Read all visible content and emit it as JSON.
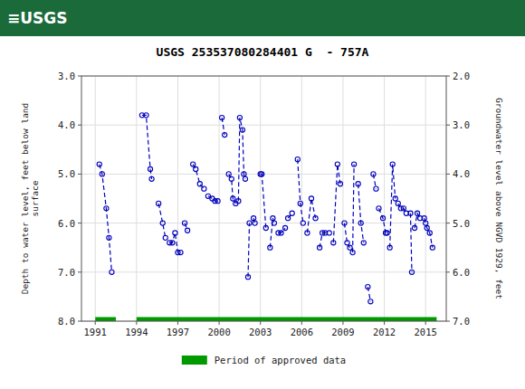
{
  "chart_data": {
    "type": "line",
    "header": {
      "text": "≡USGS",
      "color": "#1b6b3a"
    },
    "title": "USGS 253537080284401 G  - 757A",
    "ylabel": "Depth to water level, feet below land\nsurface",
    "y2label": "Groundwater level above NGVD 1929, feet",
    "xlim": [
      1990,
      2016.5
    ],
    "xticks": [
      1991,
      1994,
      1997,
      2000,
      2003,
      2006,
      2009,
      2012,
      2015
    ],
    "ylim": [
      8.0,
      3.0
    ],
    "yticks": [
      {
        "value": 3.0,
        "label": "3.0"
      },
      {
        "value": 4.0,
        "label": "4.0"
      },
      {
        "value": 5.0,
        "label": "5.0"
      },
      {
        "value": 6.0,
        "label": "6.0"
      },
      {
        "value": 7.0,
        "label": "7.0"
      },
      {
        "value": 8.0,
        "label": "8.0"
      }
    ],
    "y2lim": [
      7.0,
      2.0
    ],
    "y2ticks": [
      {
        "value": 2.0,
        "label": "2.0"
      },
      {
        "value": 3.0,
        "label": "3.0"
      },
      {
        "value": 4.0,
        "label": "4.0"
      },
      {
        "value": 5.0,
        "label": "5.0"
      },
      {
        "value": 6.0,
        "label": "6.0"
      },
      {
        "value": 7.0,
        "label": "7.0"
      }
    ],
    "grid": true,
    "legend": "bottom",
    "color": "#0000bb",
    "marker": "circle",
    "line_style": "dashed",
    "series": [
      {
        "x": [
          1991.3,
          1991.5,
          1991.8,
          1992.0,
          1992.2
        ],
        "values": [
          4.8,
          5.0,
          5.7,
          6.3,
          7.0
        ]
      },
      {
        "x": [
          1994.4,
          1994.7,
          1995.0,
          1995.1
        ],
        "values": [
          3.8,
          3.8,
          4.9,
          5.1
        ]
      },
      {
        "x": [
          1995.6,
          1995.9,
          1996.1
        ],
        "values": [
          5.6,
          6.0,
          6.3
        ]
      },
      {
        "x": [
          1996.4,
          1996.6,
          1996.8,
          1997.0,
          1997.2
        ],
        "values": [
          6.4,
          6.4,
          6.2,
          6.6,
          6.6
        ]
      },
      {
        "x": [
          1997.5,
          1997.7
        ],
        "values": [
          6.0,
          6.15
        ]
      },
      {
        "x": [
          1998.1,
          1998.3,
          1998.6,
          1998.9
        ],
        "values": [
          4.8,
          4.9,
          5.2,
          5.3
        ]
      },
      {
        "x": [
          1999.2,
          1999.5,
          1999.7,
          1999.9
        ],
        "values": [
          5.45,
          5.5,
          5.55,
          5.55
        ]
      },
      {
        "x": [
          2000.2,
          2000.4
        ],
        "values": [
          3.85,
          4.2
        ]
      },
      {
        "x": [
          2000.7,
          2000.9,
          2001.0,
          2001.2
        ],
        "values": [
          5.0,
          5.1,
          5.5,
          5.6
        ]
      },
      {
        "x": [
          2001.4,
          2001.5,
          2001.7,
          2001.8,
          2001.9
        ],
        "values": [
          5.55,
          3.85,
          4.1,
          5.0,
          5.1
        ]
      },
      {
        "x": [
          2002.1,
          2002.2
        ],
        "values": [
          7.1,
          6.0
        ]
      },
      {
        "x": [
          2002.5,
          2002.6
        ],
        "values": [
          5.9,
          6.0
        ]
      },
      {
        "x": [
          2003.0,
          2003.1,
          2003.4
        ],
        "values": [
          5.0,
          5.0,
          6.1
        ]
      },
      {
        "x": [
          2003.7,
          2003.9,
          2004.0
        ],
        "values": [
          6.5,
          5.9,
          6.0
        ]
      },
      {
        "x": [
          2004.3,
          2004.5,
          2004.8
        ],
        "values": [
          6.2,
          6.2,
          6.1
        ]
      },
      {
        "x": [
          2005.0,
          2005.3
        ],
        "values": [
          5.9,
          5.8
        ]
      },
      {
        "x": [
          2005.7,
          2005.9,
          2006.1
        ],
        "values": [
          4.7,
          5.6,
          6.0
        ]
      },
      {
        "x": [
          2006.4,
          2006.7,
          2007.0
        ],
        "values": [
          6.2,
          5.5,
          5.9
        ]
      },
      {
        "x": [
          2007.3,
          2007.5,
          2007.7,
          2008.0
        ],
        "values": [
          6.5,
          6.2,
          6.2,
          6.2
        ]
      },
      {
        "x": [
          2008.3,
          2008.6,
          2008.8
        ],
        "values": [
          6.4,
          4.8,
          5.2
        ]
      },
      {
        "x": [
          2009.1,
          2009.3,
          2009.5
        ],
        "values": [
          6.0,
          6.4,
          6.5
        ]
      },
      {
        "x": [
          2009.7,
          2009.8
        ],
        "values": [
          6.6,
          4.8
        ]
      },
      {
        "x": [
          2010.1,
          2010.3,
          2010.5
        ],
        "values": [
          5.2,
          6.0,
          6.4
        ]
      },
      {
        "x": [
          2010.8,
          2011.0
        ],
        "values": [
          7.3,
          7.6
        ]
      },
      {
        "x": [
          2011.2,
          2011.4
        ],
        "values": [
          5.0,
          5.3
        ]
      },
      {
        "x": [
          2011.6,
          2011.9,
          2012.1,
          2012.2
        ],
        "values": [
          5.7,
          5.9,
          6.2,
          6.2
        ]
      },
      {
        "x": [
          2012.4,
          2012.6,
          2012.8
        ],
        "values": [
          6.5,
          4.8,
          5.5
        ]
      },
      {
        "x": [
          2013.0,
          2013.2,
          2013.4,
          2013.6
        ],
        "values": [
          5.6,
          5.7,
          5.7,
          5.8
        ]
      },
      {
        "x": [
          2013.9,
          2014.0
        ],
        "values": [
          5.8,
          7.0
        ]
      },
      {
        "x": [
          2014.2,
          2014.4,
          2014.6
        ],
        "values": [
          6.1,
          5.8,
          5.9
        ]
      },
      {
        "x": [
          2014.9,
          2015.0,
          2015.1,
          2015.3,
          2015.5
        ],
        "values": [
          5.9,
          6.0,
          6.1,
          6.2,
          6.5
        ]
      }
    ],
    "approved": {
      "name": "Period of approved data",
      "color": "#009900",
      "y": 8.0,
      "segments": [
        [
          1991.0,
          1992.5
        ],
        [
          1994.0,
          2015.8
        ]
      ]
    }
  }
}
